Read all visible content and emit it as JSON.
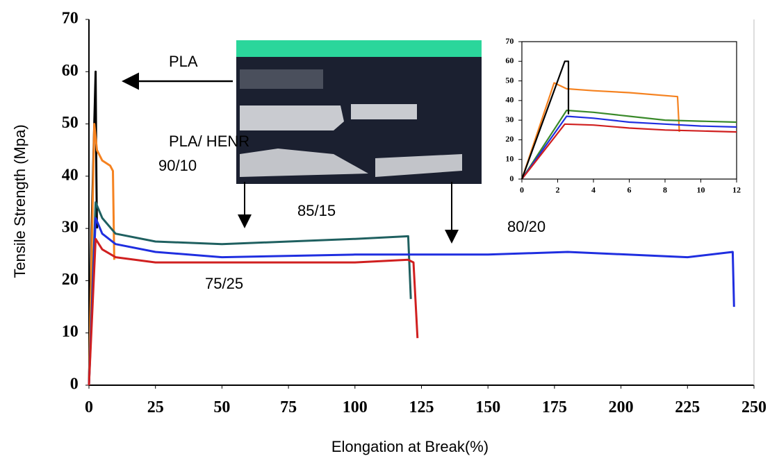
{
  "chart_data": [
    {
      "type": "line",
      "ylabel": "Tensile Strength (Mpa)",
      "xlabel": "Elongation at Break(%)",
      "xlim": [
        0,
        250
      ],
      "xticks": [
        0,
        25,
        50,
        75,
        100,
        125,
        150,
        175,
        200,
        225,
        250
      ],
      "ylim": [
        0,
        70
      ],
      "yticks": [
        0,
        10,
        20,
        30,
        40,
        50,
        60,
        70
      ],
      "annotations": [
        "PLA",
        "PLA/ HENR",
        "90/10",
        "85/15",
        "80/20",
        "75/25"
      ],
      "series": [
        {
          "color": "#000000",
          "x": [
            0,
            1,
            2.5,
            2.8,
            3
          ],
          "values": [
            0,
            30,
            60,
            40,
            30
          ]
        },
        {
          "color": "#f58220",
          "x": [
            0,
            2,
            3,
            5,
            8,
            9,
            9.5
          ],
          "values": [
            0,
            50,
            45,
            43,
            42,
            41,
            24
          ]
        },
        {
          "color": "#1f6060",
          "x": [
            0,
            2.5,
            5,
            10,
            25,
            50,
            75,
            100,
            120,
            121
          ],
          "values": [
            0,
            35,
            32,
            29,
            27.5,
            27,
            27.5,
            28,
            28.5,
            16.5
          ]
        },
        {
          "color": "#1f2ee0",
          "x": [
            0,
            2.5,
            5,
            10,
            25,
            50,
            100,
            150,
            180,
            225,
            242,
            242.5
          ],
          "values": [
            0,
            32,
            29,
            27,
            25.5,
            24.5,
            25,
            25,
            25.5,
            24.5,
            25.5,
            15
          ]
        },
        {
          "color": "#d01f1f",
          "x": [
            0,
            2.5,
            5,
            10,
            25,
            50,
            75,
            100,
            120,
            122,
            123.5
          ],
          "values": [
            0,
            28,
            26,
            24.5,
            23.5,
            23.5,
            23.5,
            23.5,
            24,
            23.5,
            9
          ]
        }
      ]
    },
    {
      "type": "line",
      "xlim": [
        0,
        12
      ],
      "xticks": [
        0,
        2,
        4,
        6,
        8,
        10,
        12
      ],
      "ylim": [
        0,
        70
      ],
      "yticks": [
        0,
        10,
        20,
        30,
        40,
        50,
        60,
        70
      ],
      "series": [
        {
          "color": "#f58220",
          "x": [
            0,
            1.8,
            2.5,
            4,
            6,
            8.7,
            8.8
          ],
          "values": [
            0,
            49,
            46,
            45,
            44,
            42,
            24
          ]
        },
        {
          "color": "#3a8a2a",
          "x": [
            0,
            2.5,
            4,
            6,
            8,
            10,
            12
          ],
          "values": [
            0,
            35,
            34,
            32,
            30,
            29.5,
            29
          ]
        },
        {
          "color": "#1f2ee0",
          "x": [
            0,
            2.5,
            4,
            6,
            8,
            10,
            12
          ],
          "values": [
            0,
            32,
            31,
            29,
            28,
            27,
            26.5
          ]
        },
        {
          "color": "#d01f1f",
          "x": [
            0,
            2.4,
            4,
            6,
            8,
            10,
            12
          ],
          "values": [
            0,
            28,
            27.5,
            26,
            25,
            24.5,
            24
          ]
        },
        {
          "color": "#000000",
          "x": [
            0,
            2.4,
            2.6,
            2.6
          ],
          "values": [
            0,
            60,
            60,
            33
          ]
        }
      ]
    }
  ]
}
